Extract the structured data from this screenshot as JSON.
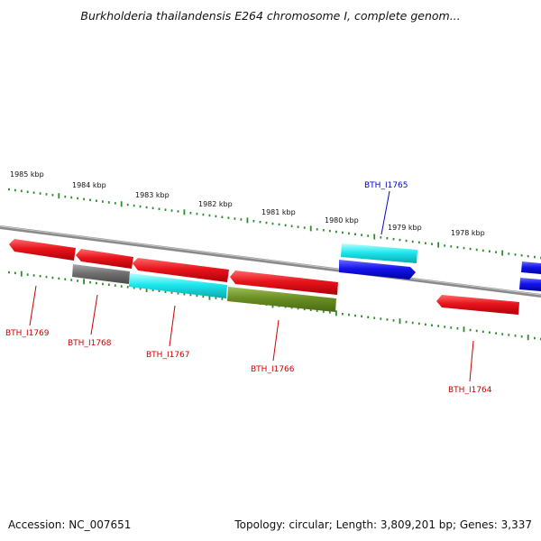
{
  "title": "Burkholderia thailandensis E264 chromosome I, complete genom...",
  "footer": {
    "accession": "Accession: NC_007651",
    "summary": "Topology: circular; Length: 3,809,201 bp; Genes: 3,337"
  },
  "scale_labels": [
    "1985 kbp",
    "1984 kbp",
    "1983 kbp",
    "1982 kbp",
    "1981 kbp",
    "1980 kbp",
    "1979 kbp",
    "1978 kbp"
  ],
  "gene_labels": [
    {
      "text": "BTH_I1765",
      "color": "#0000cc"
    },
    {
      "text": "BTH_I1769",
      "color": "#cc0000"
    },
    {
      "text": "BTH_I1768",
      "color": "#cc0000"
    },
    {
      "text": "BTH_I1767",
      "color": "#cc0000"
    },
    {
      "text": "BTH_I1766",
      "color": "#cc0000"
    },
    {
      "text": "BTH_I1764",
      "color": "#cc0000"
    }
  ],
  "colors": {
    "red": "#e8141c",
    "cyan": "#1ee8ee",
    "blue": "#1414ee",
    "gray": "#707070",
    "olive": "#6b8e23",
    "tick": "#2e8b2e",
    "backbone": "#8a8a8a"
  }
}
